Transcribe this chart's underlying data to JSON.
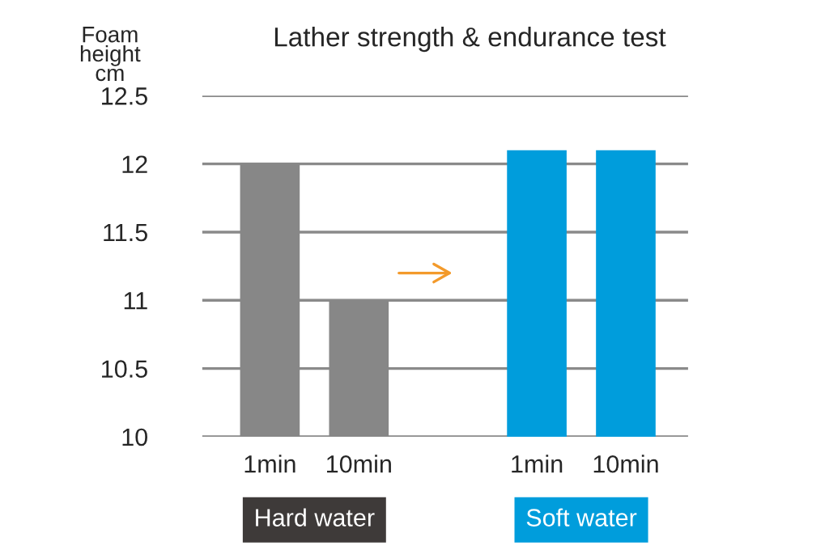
{
  "chart_data": {
    "type": "bar",
    "title": "Lather strength & endurance test",
    "ylabel": "Foam\nheight\ncm",
    "categories": [
      "1min",
      "10min",
      null,
      "1min",
      "10min"
    ],
    "values": [
      12,
      11,
      null,
      12.1,
      12.1
    ],
    "colors": [
      "#878787",
      "#878787",
      "#878787",
      "#009ddc",
      "#009ddc"
    ],
    "ylim": [
      10,
      12.5
    ],
    "yticks": [
      10,
      10.5,
      11,
      11.5,
      12,
      12.5
    ],
    "grid": "y",
    "annotations": [
      "Hard water",
      "Soft water"
    ]
  }
}
